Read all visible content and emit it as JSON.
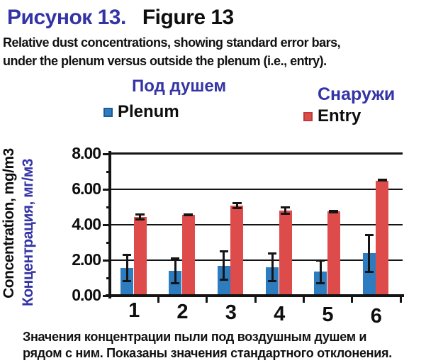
{
  "header": {
    "title_ru": "Рисунок 13.",
    "title_en": "Figure 13",
    "subtitle_line1": "Relative dust concentrations, showing standard error bars,",
    "subtitle_line2": "under the plenum versus outside the plenum (i.e., entry)."
  },
  "legend": {
    "plenum_ru": "Под душем",
    "plenum_label": "Plenum",
    "entry_ru": "Снаружи",
    "entry_label": "Entry"
  },
  "y_axis": {
    "label_en": "Concentration, mg/m3",
    "label_ru": "Концентрация, мг/м3"
  },
  "caption": {
    "line1": "Значения концентрации пыли под воздушным душем и",
    "line2": "рядом с ним. Показаны значения стандартного отклонения."
  },
  "colors": {
    "plenum_bar": "#2e7cc0",
    "entry_bar": "#de4b4b",
    "blue_text": "#3434a6",
    "black_text": "#0e0e0e",
    "error_bar": "#141414"
  },
  "chart_data": {
    "type": "bar",
    "title": "Figure 13 — Relative dust concentrations under the plenum versus outside the plenum (entry)",
    "categories": [
      "1",
      "2",
      "3",
      "4",
      "5",
      "6"
    ],
    "series": [
      {
        "name": "Plenum",
        "color": "#2e7cc0",
        "values": [
          1.55,
          1.4,
          1.7,
          1.6,
          1.35,
          2.4
        ],
        "errors": [
          0.8,
          0.75,
          0.85,
          0.85,
          0.7,
          1.1
        ]
      },
      {
        "name": "Entry",
        "color": "#de4b4b",
        "values": [
          4.45,
          4.55,
          5.1,
          4.8,
          4.75,
          6.5
        ],
        "errors": [
          0.2,
          0.05,
          0.2,
          0.25,
          0.1,
          0.05
        ]
      }
    ],
    "xlabel": "",
    "ylabel": "Concentration, mg/m3",
    "ylim": [
      0,
      8
    ],
    "yticks": [
      {
        "value": 8,
        "label": "8.00"
      },
      {
        "value": 6,
        "label": "6.00"
      },
      {
        "value": 4,
        "label": "4.00"
      },
      {
        "value": 2,
        "label": "2.00"
      },
      {
        "value": 0,
        "label": "0.00"
      }
    ],
    "yticks_minor": [
      1,
      3,
      5,
      7
    ],
    "grid": true,
    "error_bars": "standard deviation",
    "legend_position": "top"
  }
}
